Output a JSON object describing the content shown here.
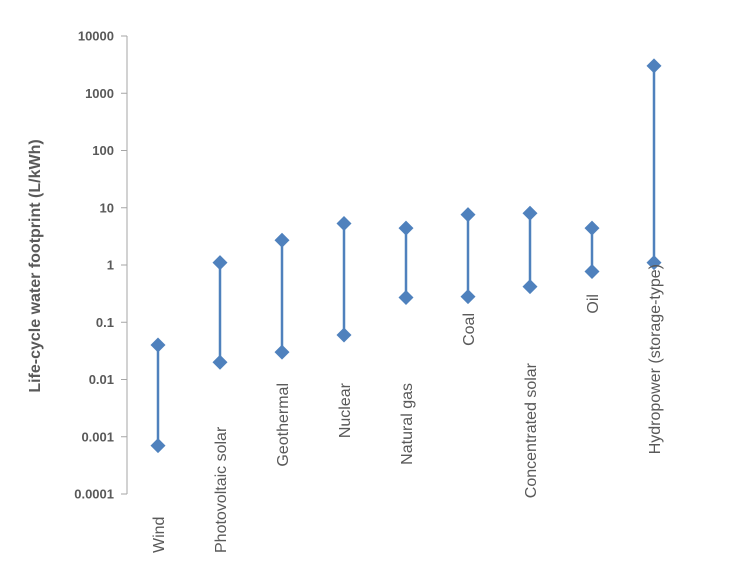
{
  "chart_data": {
    "type": "range",
    "title": "",
    "xlabel": "",
    "ylabel": "Life-cycle water footprint (L/kWh)",
    "yscale": "log",
    "ylim": [
      0.0001,
      10000
    ],
    "yticks": [
      {
        "value": 0.0001,
        "label": "0.0001"
      },
      {
        "value": 0.001,
        "label": "0.001"
      },
      {
        "value": 0.01,
        "label": "0.01"
      },
      {
        "value": 0.1,
        "label": "0.1"
      },
      {
        "value": 1,
        "label": "1"
      },
      {
        "value": 10,
        "label": "10"
      },
      {
        "value": 100,
        "label": "100"
      },
      {
        "value": 1000,
        "label": "1000"
      },
      {
        "value": 10000,
        "label": "10000"
      }
    ],
    "grid": false,
    "legend": "none",
    "categories": [
      "Wind",
      "Photovoltaic solar",
      "Geothermal",
      "Nuclear",
      "Natural gas",
      "Coal",
      "Concentrated solar",
      "Oil",
      "Hydropower (storage-type)"
    ],
    "series": [
      {
        "values": [
          0.0007,
          0.02,
          0.03,
          0.06,
          0.27,
          0.28,
          0.42,
          0.77,
          1.1
        ]
      },
      {
        "values": [
          0.04,
          1.1,
          2.7,
          5.3,
          4.4,
          7.6,
          8.0,
          4.4,
          3000
        ]
      }
    ]
  },
  "colors": {
    "marker": "#4f81bd",
    "axis": "#a6a6a6",
    "text": "#595959"
  }
}
